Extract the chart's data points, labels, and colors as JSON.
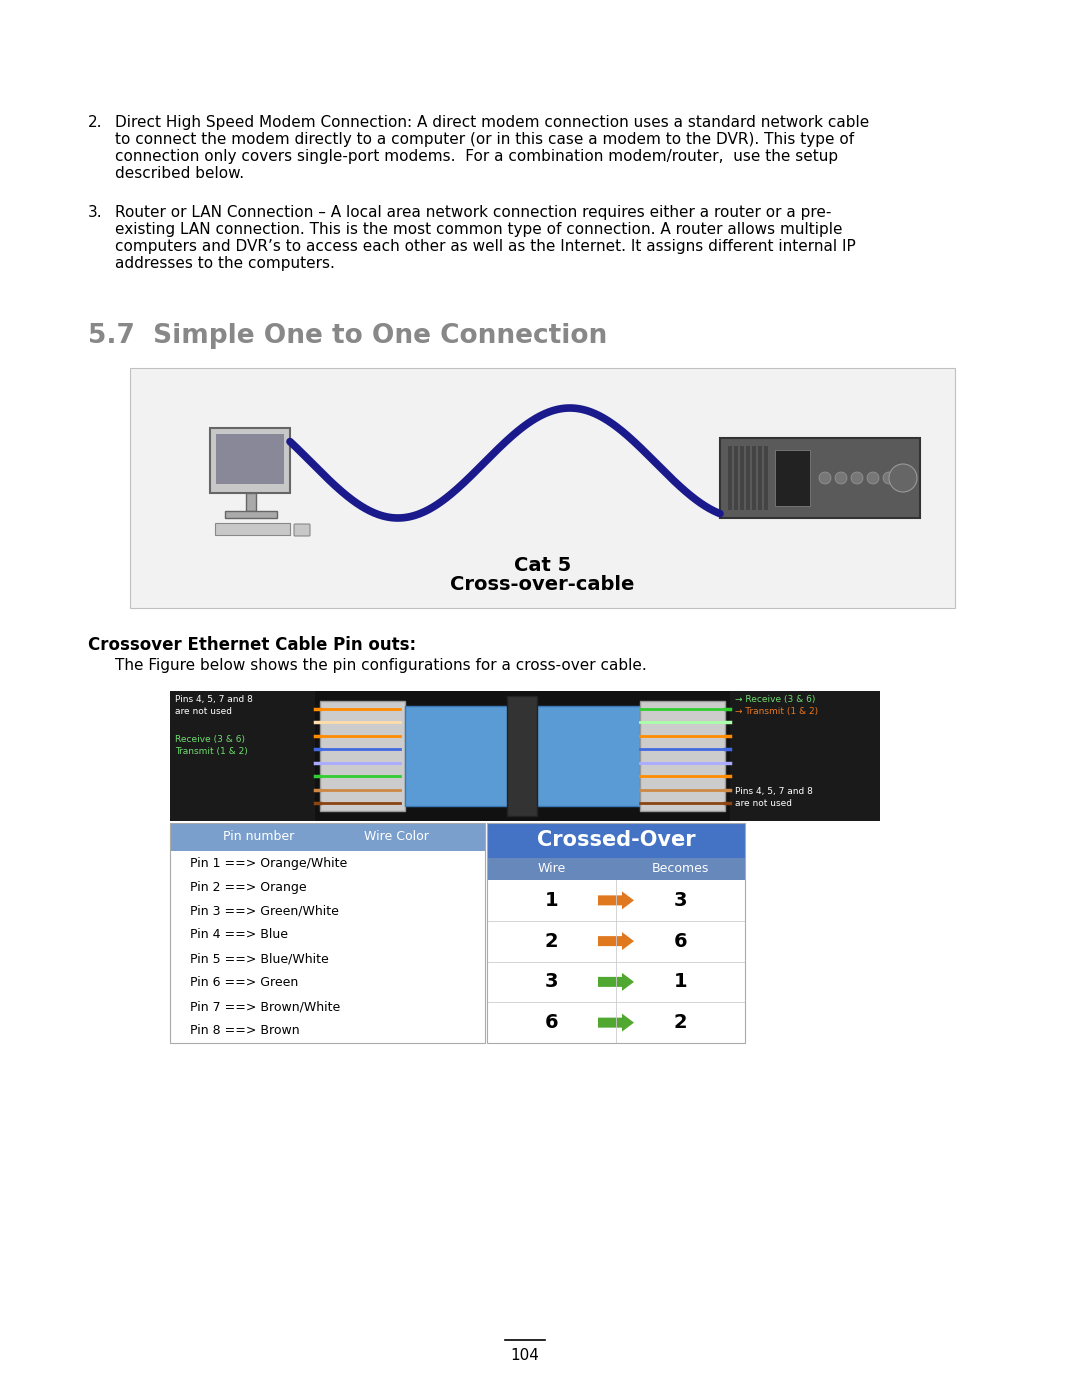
{
  "background_color": "#ffffff",
  "page_number": "104",
  "section_title": "5.7  Simple One to One Connection",
  "section_title_color": "#888888",
  "cat5_label": "Cat 5",
  "crossover_label": "Cross-over-cable",
  "crossover_section_title": "Crossover Ethernet Cable Pin outs:",
  "crossover_desc": "The Figure below shows the pin configurations for a cross-over cable.",
  "item2_number": "2.",
  "item2_line1": "Direct High Speed Modem Connection: A direct modem connection uses a standard network cable",
  "item2_line2": "to connect the modem directly to a computer (or in this case a modem to the DVR). This type of",
  "item2_line3": "connection only covers single-port modems.  For a combination modem/router,  use the setup",
  "item2_line4": "described below.",
  "item3_number": "3.",
  "item3_line1": "Router or LAN Connection – A local area network connection requires either a router or a pre-",
  "item3_line2": "existing LAN connection. This is the most common type of connection. A router allows multiple",
  "item3_line3": "computers and DVR’s to access each other as well as the Internet. It assigns different internal IP",
  "item3_line4": "addresses to the computers.",
  "pin_table_header1": "Pin number",
  "pin_table_header2": "Wire Color",
  "pin_rows": [
    "Pin 1 ==> Orange/White",
    "Pin 2 ==> Orange",
    "Pin 3 ==> Green/White",
    "Pin 4 ==> Blue",
    "Pin 5 ==> Blue/White",
    "Pin 6 ==> Green",
    "Pin 7 ==> Brown/White",
    "Pin 8 ==> Brown"
  ],
  "crossed_over_title": "Crossed-Over",
  "crossed_over_header1": "Wire",
  "crossed_over_header2": "Becomes",
  "crossed_over_rows": [
    {
      "wire": "1",
      "becomes": "3",
      "arrow_color": "#E07820"
    },
    {
      "wire": "2",
      "becomes": "6",
      "arrow_color": "#E07820"
    },
    {
      "wire": "3",
      "becomes": "1",
      "arrow_color": "#50A830"
    },
    {
      "wire": "6",
      "becomes": "2",
      "arrow_color": "#50A830"
    }
  ],
  "table_hdr_color": "#7B9FCC",
  "crossed_hdr_color": "#4472C4",
  "crossed_subhdr_color": "#6688BB",
  "box_bg": "#f2f2f2",
  "box_border": "#c0c0c0",
  "connector_dark": "#1a1a1a",
  "connector_mid": "#111111",
  "cable_color": "#5B9BD5",
  "dvr_color": "#555555",
  "wavy_cable_color": "#1a1a8c"
}
